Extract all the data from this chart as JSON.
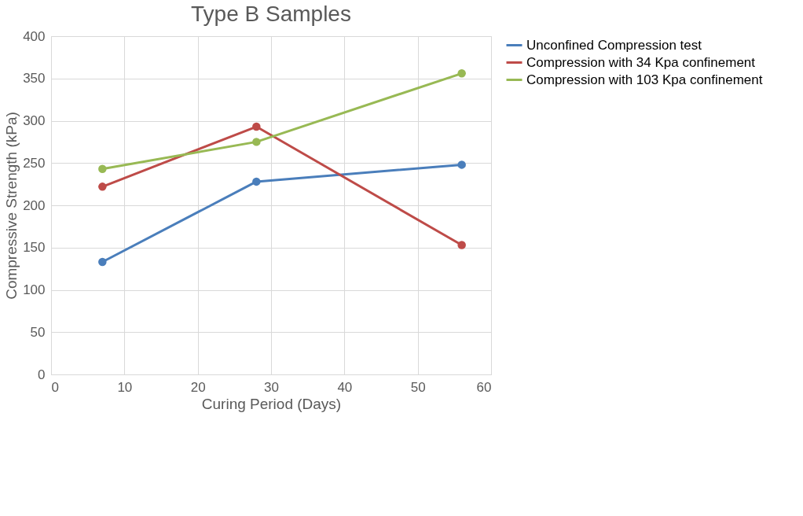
{
  "chart_data": {
    "type": "line",
    "title": "Type B Samples",
    "xlabel": "Curing Period (Days)",
    "ylabel": "Compressive Strength (kPa)",
    "x": [
      7,
      28,
      56
    ],
    "series": [
      {
        "name": "Unconfined Compression test",
        "color": "#4a7ebb",
        "values": [
          133,
          228,
          248
        ]
      },
      {
        "name": "Compression with 34 Kpa confinement",
        "color": "#be4b48",
        "values": [
          222,
          293,
          153
        ]
      },
      {
        "name": "Compression with 103 Kpa confinement",
        "color": "#98b954",
        "values": [
          243,
          275,
          356
        ]
      }
    ],
    "xlim": [
      0,
      60
    ],
    "xticks": [
      0,
      10,
      20,
      30,
      40,
      50,
      60
    ],
    "ylim": [
      0,
      400
    ],
    "yticks": [
      0,
      50,
      100,
      150,
      200,
      250,
      300,
      350,
      400
    ],
    "grid": true,
    "legend": "right",
    "marker": "circle",
    "line_style": "solid"
  }
}
